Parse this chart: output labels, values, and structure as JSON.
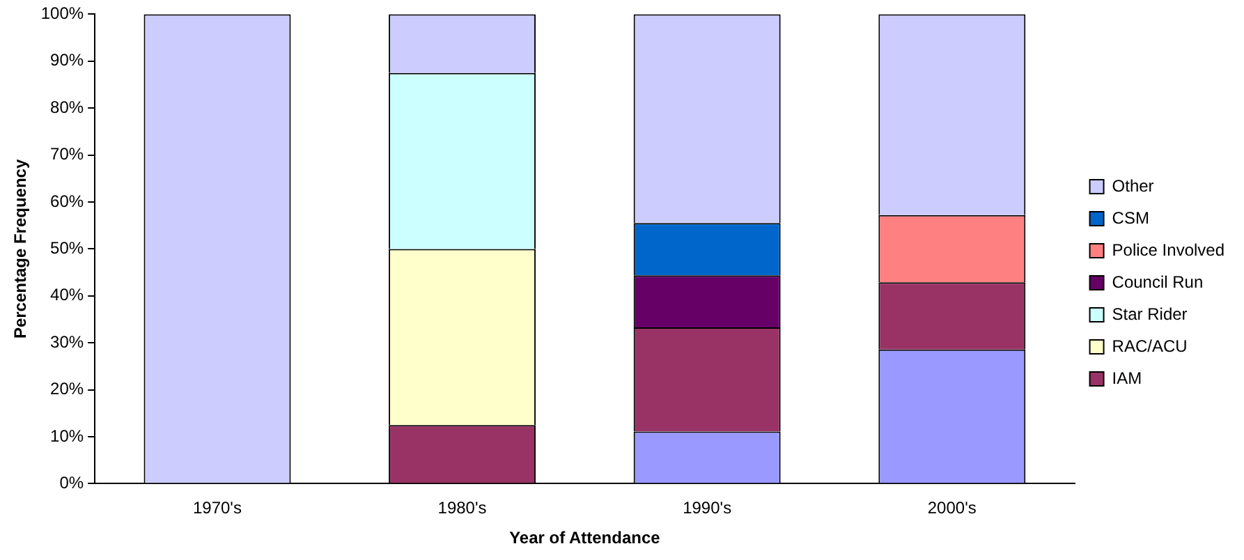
{
  "chart_data": {
    "type": "bar",
    "stacked": true,
    "xlabel": "Year of Attendance",
    "ylabel": "Percentage Frequency",
    "categories": [
      "1970's",
      "1980's",
      "1990's",
      "2000's"
    ],
    "series": [
      {
        "color": "#9999ff",
        "values": [
          null,
          null,
          11.1,
          28.6
        ]
      },
      {
        "name": "IAM",
        "color": "#993366",
        "values": [
          null,
          12.5,
          22.2,
          14.3
        ]
      },
      {
        "name": "RAC/ACU",
        "color": "#ffffcc",
        "values": [
          null,
          37.5,
          null,
          null
        ]
      },
      {
        "name": "Star Rider",
        "color": "#ccffff",
        "values": [
          null,
          37.5,
          null,
          null
        ]
      },
      {
        "name": "Council Run",
        "color": "#660066",
        "values": [
          null,
          null,
          11.1,
          null
        ]
      },
      {
        "name": "Police Involved",
        "color": "#ff8080",
        "values": [
          null,
          null,
          null,
          14.3
        ]
      },
      {
        "name": "CSM",
        "color": "#0066cc",
        "values": [
          null,
          null,
          11.1,
          null
        ]
      },
      {
        "name": "Other",
        "color": "#ccccff",
        "values": [
          100,
          12.5,
          44.5,
          42.8
        ]
      }
    ],
    "ylim": [
      0,
      100
    ],
    "yticks": [
      {
        "value": 0,
        "label": "0%"
      },
      {
        "value": 10,
        "label": "10%"
      },
      {
        "value": 20,
        "label": "20%"
      },
      {
        "value": 30,
        "label": "30%"
      },
      {
        "value": 40,
        "label": "40%"
      },
      {
        "value": 50,
        "label": "50%"
      },
      {
        "value": 60,
        "label": "60%"
      },
      {
        "value": 70,
        "label": "70%"
      },
      {
        "value": 80,
        "label": "80%"
      },
      {
        "value": 90,
        "label": "90%"
      },
      {
        "value": 100,
        "label": "100%"
      }
    ],
    "grid": false,
    "legend": "right"
  }
}
